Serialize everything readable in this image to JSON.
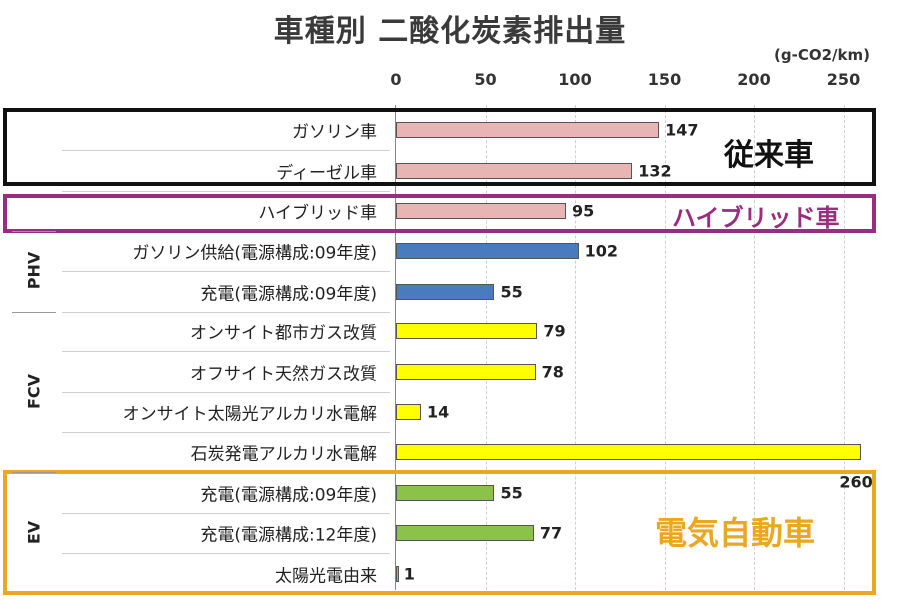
{
  "colors": {
    "conventional": "#e8b4b4",
    "phv": "#4a7bbf",
    "fcv": "#ffff00",
    "ev": "#8bc34a",
    "box_conventional": "#111111",
    "box_hybrid": "#9b2d7f",
    "box_ev": "#e8a820"
  },
  "chart_data": {
    "type": "bar",
    "orientation": "horizontal",
    "title": "車種別 二酸化炭素排出量",
    "unit": "(g-CO2/km)",
    "xlim": [
      0,
      260
    ],
    "xticks": [
      0,
      50,
      100,
      150,
      200,
      250
    ],
    "grid": true,
    "categories": [
      "ガソリン車",
      "ディーゼル車",
      "ハイブリッド車",
      "ガソリン供給(電源構成:09年度)",
      "充電(電源構成:09年度)",
      "オンサイト都市ガス改質",
      "オフサイト天然ガス改質",
      "オンサイト太陽光アルカリ水電解",
      "石炭発電アルカリ水電解",
      "充電(電源構成:09年度)",
      "充電(電源構成:12年度)",
      "太陽光電由来"
    ],
    "values": [
      147,
      132,
      95,
      102,
      55,
      79,
      78,
      14,
      260,
      55,
      77,
      1
    ],
    "value_labels": [
      "147",
      "132",
      "95",
      "102",
      "55",
      "79",
      "78",
      "14",
      "260",
      "55",
      "77",
      "1"
    ],
    "bar_groups": [
      "conventional",
      "conventional",
      "conventional",
      "phv",
      "phv",
      "fcv",
      "fcv",
      "fcv",
      "fcv",
      "ev",
      "ev",
      "ev"
    ],
    "groups": [
      {
        "key": "conventional",
        "label": "従来車"
      },
      {
        "key": "hybrid",
        "label": "ハイブリッド車"
      },
      {
        "key": "ev",
        "label": "電気自動車"
      }
    ],
    "side_labels": [
      "PHV",
      "FCV",
      "EV"
    ]
  }
}
